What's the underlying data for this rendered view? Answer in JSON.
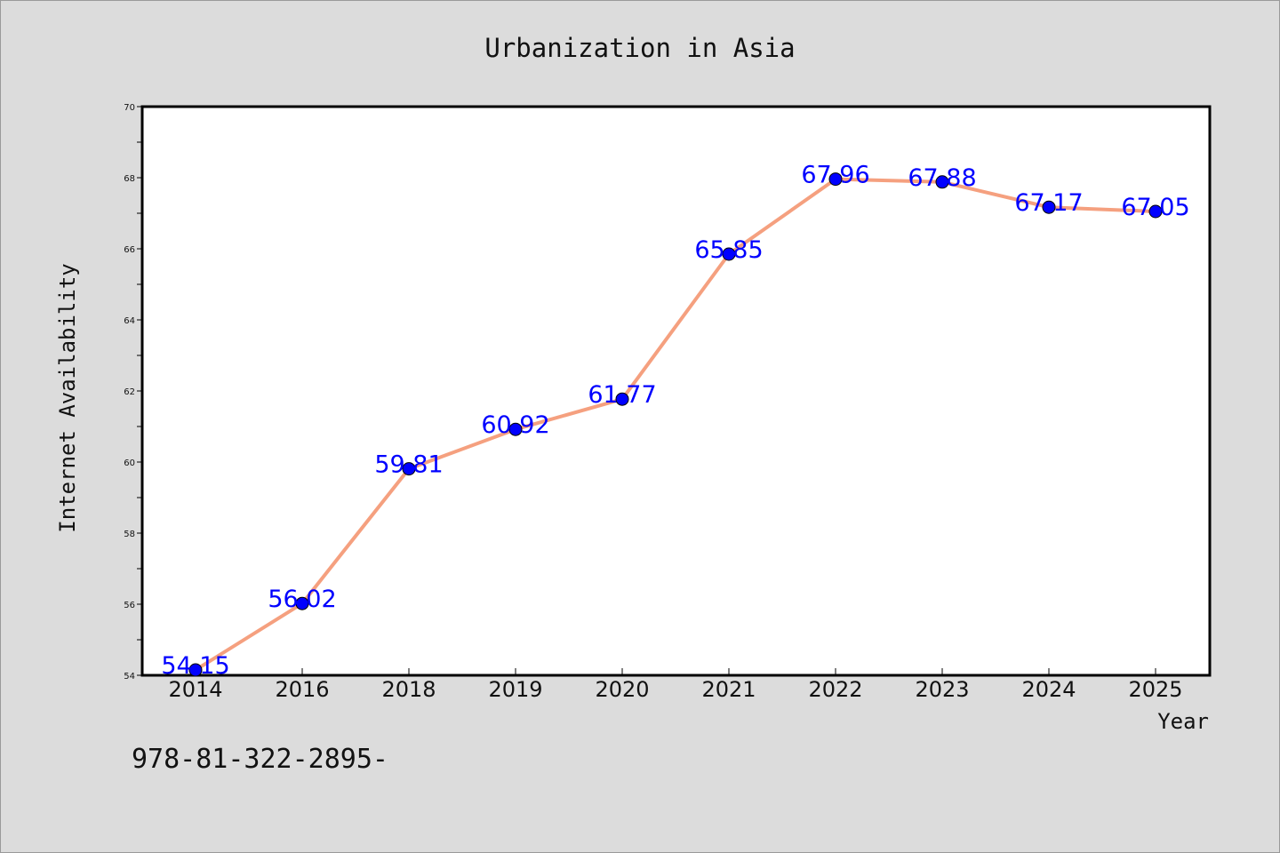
{
  "chart_data": {
    "type": "line",
    "title": "Urbanization in Asia",
    "xlabel": "Year",
    "ylabel": "Internet Availability",
    "categories": [
      "2014",
      "2016",
      "2018",
      "2019",
      "2020",
      "2021",
      "2022",
      "2023",
      "2024",
      "2025"
    ],
    "series": [
      {
        "values": [
          54.15,
          56.02,
          59.81,
          60.92,
          61.77,
          65.85,
          67.96,
          67.88,
          67.17,
          67.05
        ],
        "line_color": "#f5a07f",
        "marker_color": "#0000ff"
      }
    ],
    "data_labels": [
      "54.15",
      "56.02",
      "59.81",
      "60.92",
      "61.77",
      "65.85",
      "67.96",
      "67.88",
      "67.17",
      "67.05"
    ],
    "ylim": [
      54,
      70
    ],
    "yticks": [
      "54",
      "56",
      "58",
      "60",
      "62",
      "64",
      "66",
      "68",
      "70"
    ],
    "grid": false,
    "legend": "none"
  },
  "footer": {
    "text": "978-81-322-2895-"
  }
}
